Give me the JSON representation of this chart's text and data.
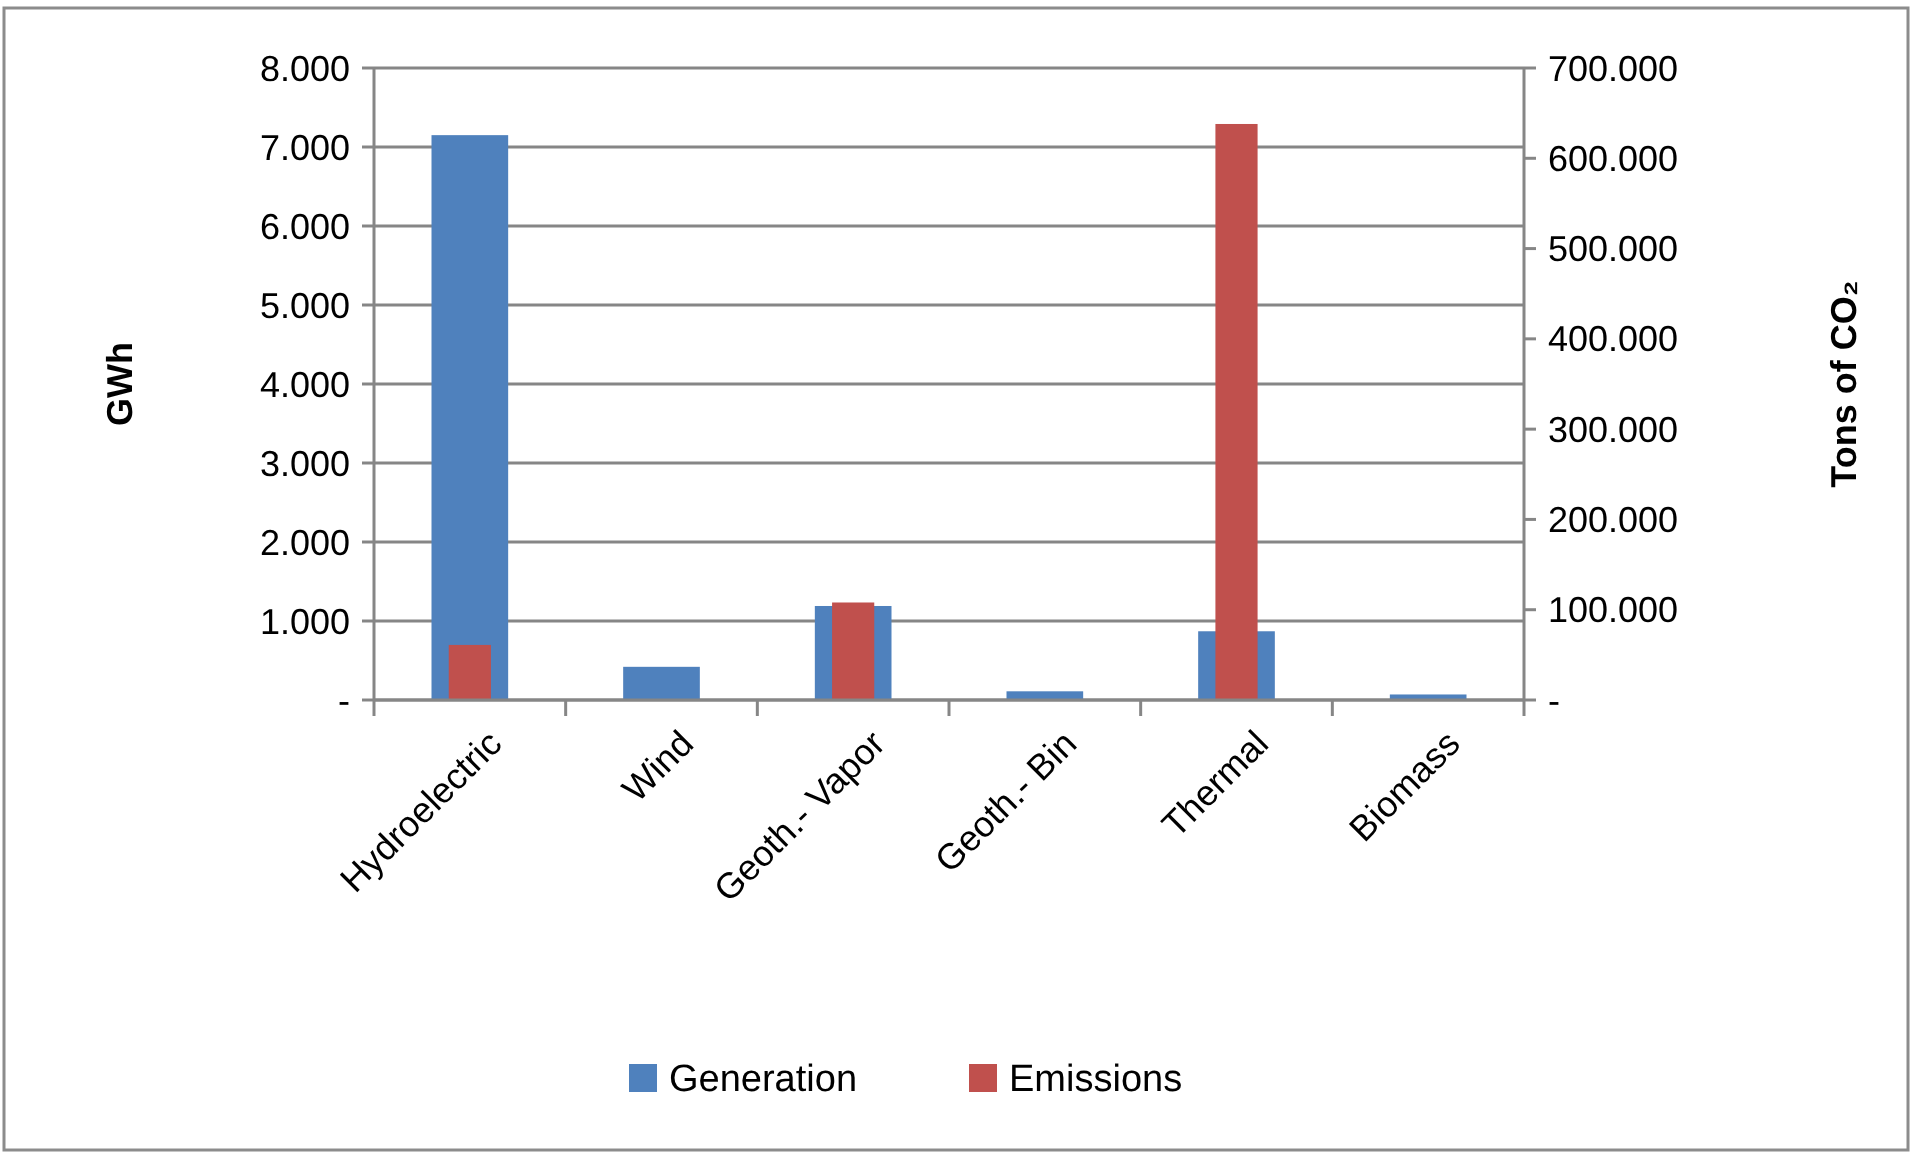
{
  "chart_data": {
    "type": "bar",
    "categories": [
      "Hydroelectric",
      "Wind",
      "Geoth.- Vapor",
      "Geoth.- Bin",
      "Thermal",
      "Biomass"
    ],
    "ylabel": "GWh",
    "y2label": "Tons of CO₂",
    "series": [
      {
        "name": "Generation",
        "color": "#4f81bd",
        "values": [
          7150,
          420,
          1190,
          110,
          870,
          70
        ]
      },
      {
        "name": "Emissions",
        "color": "#c0504d",
        "axis": "y2",
        "values": [
          61000,
          0,
          108000,
          0,
          638000,
          0
        ]
      }
    ],
    "ylim": [
      0,
      8000
    ],
    "yticks": [
      {
        "value": 0,
        "label": "-"
      },
      {
        "value": 1000,
        "label": "1.000"
      },
      {
        "value": 2000,
        "label": "2.000"
      },
      {
        "value": 3000,
        "label": "3.000"
      },
      {
        "value": 4000,
        "label": "4.000"
      },
      {
        "value": 5000,
        "label": "5.000"
      },
      {
        "value": 6000,
        "label": "6.000"
      },
      {
        "value": 7000,
        "label": "7.000"
      },
      {
        "value": 8000,
        "label": "8.000"
      }
    ],
    "y2lim": [
      0,
      700000
    ],
    "y2ticks": [
      {
        "value": 0,
        "label": "-"
      },
      {
        "value": 100000,
        "label": "100.000"
      },
      {
        "value": 200000,
        "label": "200.000"
      },
      {
        "value": 300000,
        "label": "300.000"
      },
      {
        "value": 400000,
        "label": "400.000"
      },
      {
        "value": 500000,
        "label": "500.000"
      },
      {
        "value": 600000,
        "label": "600.000"
      },
      {
        "value": 700000,
        "label": "700.000"
      }
    ],
    "grid": "y",
    "legend": "bottom"
  }
}
